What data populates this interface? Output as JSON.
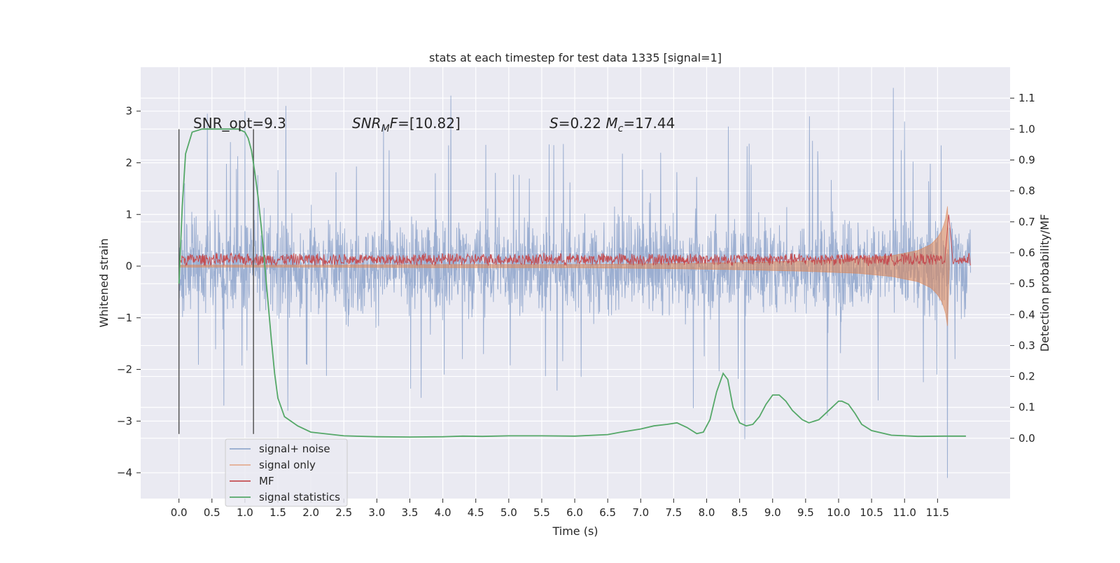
{
  "chart_data": {
    "type": "line",
    "title": "stats at each timestep for test data 1335 [signal=1]",
    "xlabel": "Time (s)",
    "ylabel": "Whitened strain",
    "ylabel_right": "Detection probability/MF",
    "xlim": [
      -0.58,
      12.6
    ],
    "ylim": [
      -4.5,
      3.85
    ],
    "ylim_right": [
      -0.195,
      1.2
    ],
    "x_ticks": [
      "0.0",
      "0.5",
      "1.0",
      "1.5",
      "2.0",
      "2.5",
      "3.0",
      "3.5",
      "4.0",
      "4.5",
      "5.0",
      "5.5",
      "6.0",
      "6.5",
      "7.0",
      "7.5",
      "8.0",
      "8.5",
      "9.0",
      "9.5",
      "10.0",
      "10.5",
      "11.0",
      "11.5"
    ],
    "y_ticks_left": [
      "−4",
      "−3",
      "−2",
      "−1",
      "0",
      "1",
      "2",
      "3"
    ],
    "y_ticks_right": [
      "0.0",
      "0.1",
      "0.2",
      "0.3",
      "0.4",
      "0.5",
      "0.6",
      "0.7",
      "0.8",
      "0.9",
      "1.0",
      "1.1"
    ],
    "grid": true,
    "legend_position": "lower-left",
    "annotations": [
      {
        "text": "SNR_opt=9.3",
        "x": 0.2,
        "y": 2.75
      },
      {
        "text": "SNR_MF=[10.82]",
        "x": 2.6,
        "y": 2.75
      },
      {
        "text": "S=0.22   M_c=17.44",
        "x": 5.6,
        "y": 2.75
      }
    ],
    "vertical_lines": [
      0.0,
      1.13
    ],
    "series": [
      {
        "name": "signal+ noise",
        "color": "#4c72b0",
        "x_range": [
          0.0,
          12.0
        ],
        "envelope_typical": [
          -1.5,
          1.5
        ],
        "peaks": [
          {
            "x": 0.43,
            "y": 2.95
          },
          {
            "x": 1.0,
            "y": 3.0
          },
          {
            "x": 1.62,
            "y": 3.1
          },
          {
            "x": 4.12,
            "y": 3.3
          },
          {
            "x": 10.83,
            "y": 3.45
          },
          {
            "x": 3.1,
            "y": 2.7
          },
          {
            "x": 9.56,
            "y": 2.9
          },
          {
            "x": 11.0,
            "y": 2.8
          },
          {
            "x": 8.33,
            "y": 2.7
          }
        ],
        "troughs": [
          {
            "x": 0.68,
            "y": -2.7
          },
          {
            "x": 1.65,
            "y": -2.8
          },
          {
            "x": 3.67,
            "y": -2.55
          },
          {
            "x": 7.8,
            "y": -2.75
          },
          {
            "x": 8.58,
            "y": -3.35
          },
          {
            "x": 9.83,
            "y": -2.9
          },
          {
            "x": 11.65,
            "y": -4.1
          },
          {
            "x": 10.6,
            "y": -2.6
          }
        ]
      },
      {
        "name": "signal only",
        "color": "#dd8452",
        "x": [
          0.0,
          2.0,
          4.0,
          6.0,
          7.5,
          8.5,
          9.5,
          10.3,
          10.8,
          11.2,
          11.4,
          11.5,
          11.57,
          11.62,
          11.65,
          11.67,
          11.68
        ],
        "amplitude": [
          0.02,
          0.02,
          0.03,
          0.03,
          0.05,
          0.07,
          0.1,
          0.14,
          0.2,
          0.3,
          0.42,
          0.55,
          0.7,
          0.9,
          1.15,
          1.35,
          0.0
        ]
      },
      {
        "name": "MF",
        "color": "#c44e52",
        "x_range": [
          0.0,
          12.0
        ],
        "base": 0.13,
        "noise": 0.13,
        "peak": {
          "x": 11.67,
          "y": 1.0
        }
      },
      {
        "name": "signal statistics",
        "color": "#55a868",
        "axis": "right",
        "x": [
          0.0,
          0.05,
          0.1,
          0.2,
          0.35,
          0.6,
          0.9,
          1.0,
          1.05,
          1.1,
          1.15,
          1.2,
          1.25,
          1.3,
          1.35,
          1.4,
          1.45,
          1.5,
          1.6,
          1.8,
          2.0,
          2.5,
          3.0,
          3.5,
          4.0,
          4.3,
          4.6,
          5.0,
          5.5,
          6.0,
          6.5,
          6.7,
          7.0,
          7.2,
          7.4,
          7.55,
          7.7,
          7.85,
          7.95,
          8.05,
          8.15,
          8.25,
          8.32,
          8.4,
          8.5,
          8.6,
          8.7,
          8.8,
          8.9,
          9.0,
          9.1,
          9.2,
          9.3,
          9.45,
          9.55,
          9.7,
          9.85,
          10.0,
          10.05,
          10.15,
          10.25,
          10.35,
          10.5,
          10.8,
          11.2,
          11.6,
          11.8,
          11.93
        ],
        "y": [
          0.5,
          0.75,
          0.92,
          0.99,
          1.0,
          1.0,
          1.0,
          0.99,
          0.97,
          0.93,
          0.86,
          0.78,
          0.68,
          0.56,
          0.44,
          0.32,
          0.21,
          0.13,
          0.07,
          0.04,
          0.02,
          0.008,
          0.005,
          0.004,
          0.005,
          0.007,
          0.006,
          0.008,
          0.008,
          0.007,
          0.012,
          0.02,
          0.03,
          0.04,
          0.045,
          0.05,
          0.035,
          0.015,
          0.02,
          0.06,
          0.15,
          0.21,
          0.19,
          0.1,
          0.05,
          0.04,
          0.045,
          0.07,
          0.11,
          0.14,
          0.14,
          0.12,
          0.09,
          0.06,
          0.05,
          0.06,
          0.09,
          0.12,
          0.12,
          0.11,
          0.08,
          0.045,
          0.025,
          0.01,
          0.006,
          0.007,
          0.007,
          0.007
        ]
      }
    ]
  }
}
